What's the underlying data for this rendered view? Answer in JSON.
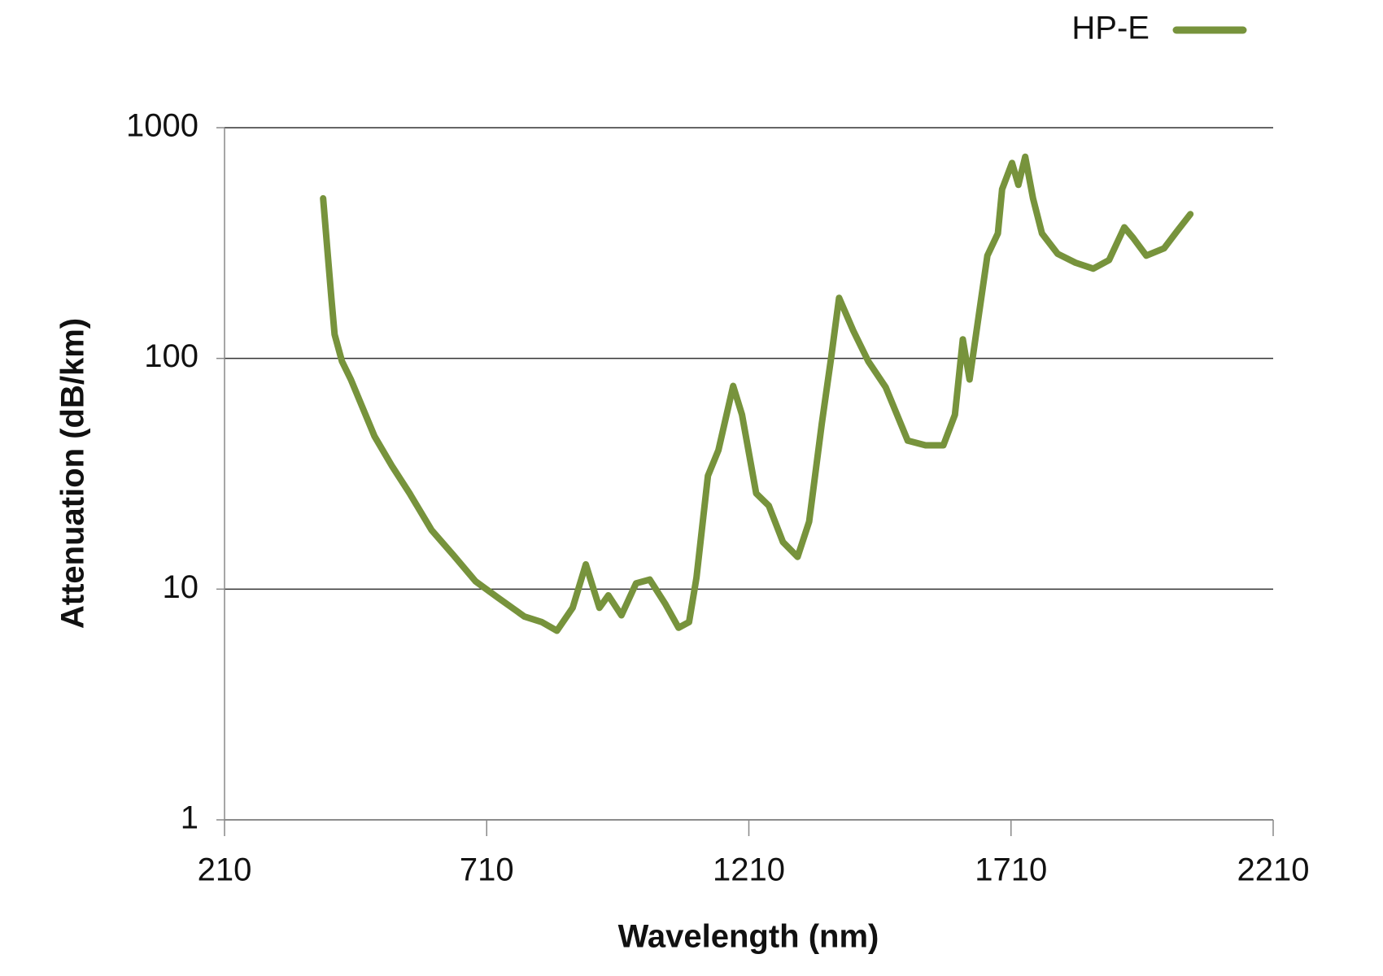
{
  "chart_data": {
    "type": "line",
    "x_label": "Wavelength (nm)",
    "y_label": "Attenuation (dB/km)",
    "x": [
      398,
      407,
      414,
      420,
      434,
      451,
      471,
      496,
      530,
      563,
      605,
      647,
      689,
      731,
      782,
      815,
      844,
      874,
      899,
      925,
      942,
      967,
      995,
      1021,
      1051,
      1076,
      1096,
      1110,
      1132,
      1152,
      1180,
      1197,
      1224,
      1248,
      1275,
      1303,
      1325,
      1349,
      1367,
      1382,
      1409,
      1438,
      1471,
      1513,
      1547,
      1581,
      1603,
      1618,
      1631,
      1648,
      1665,
      1685,
      1693,
      1712,
      1724,
      1737,
      1752,
      1769,
      1799,
      1833,
      1867,
      1897,
      1926,
      1943,
      1968,
      2002,
      2027,
      2052
    ],
    "series": [
      {
        "name": "HP-E",
        "color": "#77933c",
        "values": [
          494,
          279,
          180,
          127,
          97,
          81,
          63,
          46,
          34,
          26,
          18,
          14,
          10.8,
          9.2,
          7.6,
          7.2,
          6.6,
          8.3,
          12.8,
          8.3,
          9.4,
          7.7,
          10.6,
          11,
          8.6,
          6.8,
          7.2,
          11.2,
          31,
          40,
          76,
          57,
          26,
          23,
          16,
          13.8,
          19.6,
          52,
          101,
          183,
          132,
          97,
          75,
          44,
          42,
          42,
          57,
          121,
          81,
          151,
          279,
          348,
          541,
          703,
          565,
          748,
          494,
          348,
          284,
          260,
          245,
          267,
          370,
          333,
          279,
          300,
          357,
          422
        ]
      }
    ],
    "xlim": [
      210,
      2210
    ],
    "xticks": [
      210,
      710,
      1210,
      1710,
      2210
    ],
    "ylim": [
      1,
      1000
    ],
    "yticks": [
      1,
      10,
      100,
      1000
    ],
    "y_scale": "log",
    "grid": true,
    "legend": "top-right"
  }
}
